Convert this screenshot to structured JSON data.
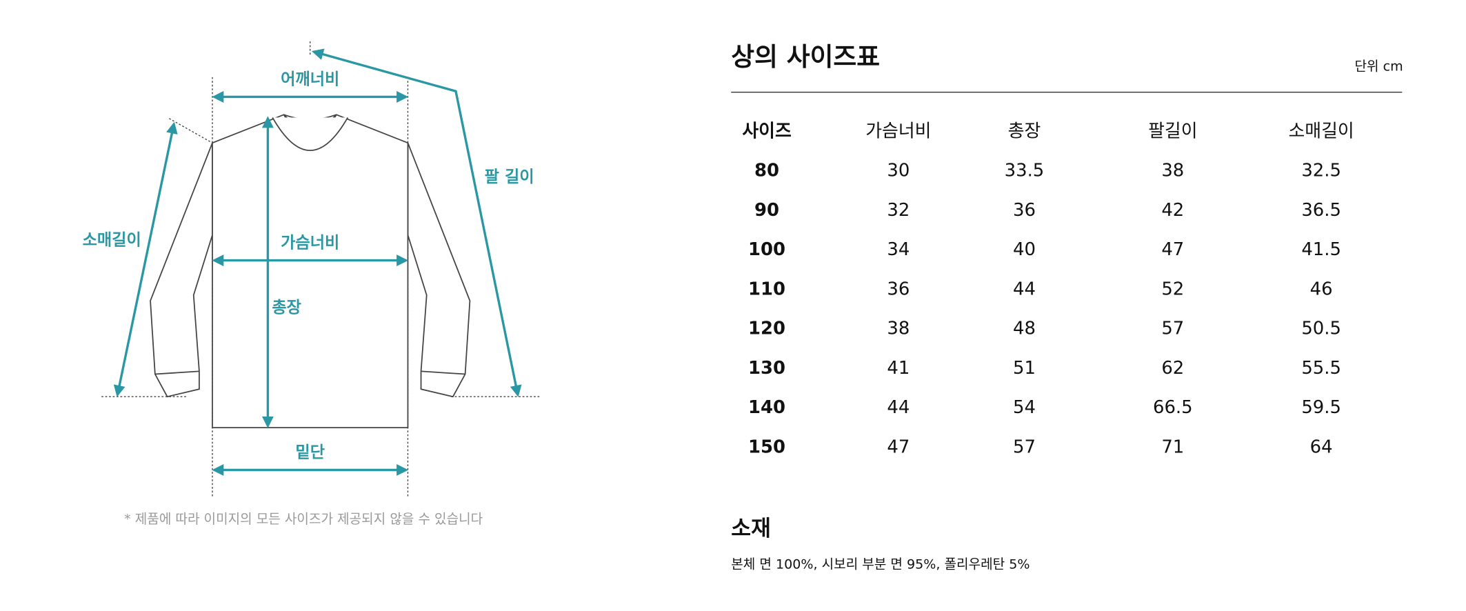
{
  "diagram": {
    "labels": {
      "shoulder": "어깨너비",
      "chest": "가슴너비",
      "length": "총장",
      "hem": "밑단",
      "sleeve_length": "소매길이",
      "arm_length": "팔 길이"
    },
    "note": "* 제품에 따라 이미지의 모든 사이즈가 제공되지 않을 수 있습니다"
  },
  "size_table": {
    "title": "상의 사이즈표",
    "unit": "단위 cm",
    "headers": [
      "사이즈",
      "가슴너비",
      "총장",
      "팔길이",
      "소매길이"
    ],
    "rows": [
      [
        "80",
        "30",
        "33.5",
        "38",
        "32.5"
      ],
      [
        "90",
        "32",
        "36",
        "42",
        "36.5"
      ],
      [
        "100",
        "34",
        "40",
        "47",
        "41.5"
      ],
      [
        "110",
        "36",
        "44",
        "52",
        "46"
      ],
      [
        "120",
        "38",
        "48",
        "57",
        "50.5"
      ],
      [
        "130",
        "41",
        "51",
        "62",
        "55.5"
      ],
      [
        "140",
        "44",
        "54",
        "66.5",
        "59.5"
      ],
      [
        "150",
        "47",
        "57",
        "71",
        "64"
      ]
    ]
  },
  "material": {
    "title": "소재",
    "text": "본체 면 100%, 시보리 부분 면 95%, 폴리우레탄 5%"
  }
}
